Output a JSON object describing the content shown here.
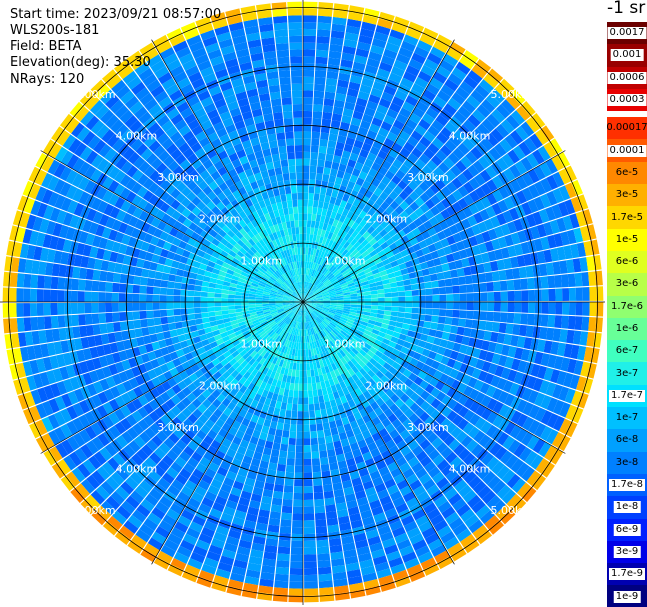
{
  "info": {
    "start_time": "Start time: 2023/09/21 08:57:00",
    "instrument": "WLS200s-181",
    "field": "Field: BETA",
    "elevation": "Elevation(deg): 35.30",
    "nrays": "NRays: 120"
  },
  "colorbar": {
    "unit_label": "-1 sr",
    "high_group": [
      {
        "label": "0.0017",
        "color": "#6b0000",
        "label_style": "white"
      },
      {
        "label": "0.001",
        "color": "#990000",
        "label_style": "white"
      },
      {
        "label": "0.0006",
        "color": "#c00000",
        "label_style": "white"
      },
      {
        "label": "0.0003",
        "color": "#e80000",
        "label_style": "white"
      }
    ],
    "low_group": [
      {
        "label": "0.00017",
        "color": "#ff3000",
        "label_style": "none"
      },
      {
        "label": "0.0001",
        "color": "#ff5a00",
        "label_style": "white"
      },
      {
        "label": "6e-5",
        "color": "#ff8800",
        "label_style": "none"
      },
      {
        "label": "3e-5",
        "color": "#ffb000",
        "label_style": "none"
      },
      {
        "label": "1.7e-5",
        "color": "#ffd700",
        "label_style": "none"
      },
      {
        "label": "1e-5",
        "color": "#ffff00",
        "label_style": "none"
      },
      {
        "label": "6e-6",
        "color": "#e0ff20",
        "label_style": "none"
      },
      {
        "label": "3e-6",
        "color": "#b8ff48",
        "label_style": "none"
      },
      {
        "label": "1.7e-6",
        "color": "#90ff70",
        "label_style": "none"
      },
      {
        "label": "1e-6",
        "color": "#68ff98",
        "label_style": "none"
      },
      {
        "label": "6e-7",
        "color": "#40ffc0",
        "label_style": "none"
      },
      {
        "label": "3e-7",
        "color": "#20f0e8",
        "label_style": "none"
      },
      {
        "label": "1.7e-7",
        "color": "#00e0ff",
        "label_style": "white"
      },
      {
        "label": "1e-7",
        "color": "#00c0ff",
        "label_style": "none"
      },
      {
        "label": "6e-8",
        "color": "#00a0ff",
        "label_style": "none"
      },
      {
        "label": "3e-8",
        "color": "#0080ff",
        "label_style": "none"
      },
      {
        "label": "1.7e-8",
        "color": "#0060ff",
        "label_style": "white"
      },
      {
        "label": "1e-8",
        "color": "#0040ff",
        "label_style": "white"
      },
      {
        "label": "6e-9",
        "color": "#0020ff",
        "label_style": "white"
      },
      {
        "label": "3e-9",
        "color": "#0000e8",
        "label_style": "white"
      },
      {
        "label": "1.7e-9",
        "color": "#0000b0",
        "label_style": "white"
      },
      {
        "label": "1e-9",
        "color": "#000080",
        "label_style": "white"
      }
    ]
  },
  "chart_data": {
    "type": "heatmap",
    "projection": "polar PPI scan",
    "field": "BETA",
    "elevation_deg": 35.3,
    "n_rays": 120,
    "range_rings_km": [
      1,
      2,
      3,
      4,
      5
    ],
    "ring_labels": [
      "1.00km",
      "2.00km",
      "3.00km",
      "4.00km",
      "5.00km"
    ],
    "max_range_km": 5.1,
    "spoke_count": 12,
    "background_value_per_range_km": [
      {
        "range_km": 0.0,
        "value": "1.7e-7"
      },
      {
        "range_km": 1.5,
        "value": "1.7e-7"
      },
      {
        "range_km": 2.0,
        "value": "6e-8"
      },
      {
        "range_km": 3.0,
        "value": "3e-8"
      },
      {
        "range_km": 4.8,
        "value": "3e-8"
      },
      {
        "range_km": 5.1,
        "value": "1e-5"
      }
    ],
    "notes": "Band of elevated backscatter (yellow/orange, ~1e-5 to 6e-5) near the outer edge, strongest toward the south and south-east."
  }
}
